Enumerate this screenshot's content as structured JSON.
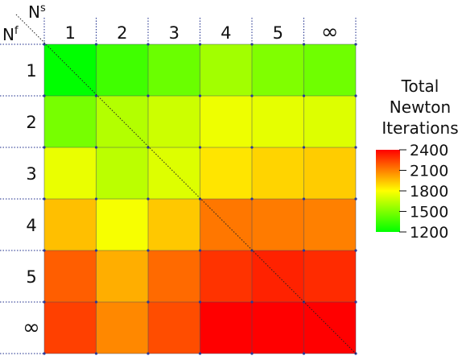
{
  "chart_data": {
    "type": "heatmap",
    "x_axis_label": "N",
    "x_axis_superscript": "s",
    "y_axis_label": "N",
    "y_axis_superscript": "f",
    "x_categories": [
      "1",
      "2",
      "3",
      "4",
      "5",
      "∞"
    ],
    "y_categories": [
      "1",
      "2",
      "3",
      "4",
      "5",
      "∞"
    ],
    "values": [
      [
        1200,
        1350,
        1450,
        1580,
        1500,
        1460
      ],
      [
        1480,
        1620,
        1680,
        1760,
        1740,
        1720
      ],
      [
        1750,
        1640,
        1720,
        1860,
        1900,
        1920
      ],
      [
        1950,
        1780,
        1930,
        2120,
        2110,
        2100
      ],
      [
        2180,
        1990,
        2150,
        2280,
        2320,
        2300
      ],
      [
        2250,
        2080,
        2220,
        2420,
        2400,
        2410
      ]
    ],
    "colorbar": {
      "title_lines": [
        "Total",
        "Newton",
        "Iterations"
      ],
      "ticks": [
        2400,
        2100,
        1800,
        1500,
        1200
      ],
      "range": [
        1200,
        2400
      ],
      "colors": [
        "#00ff00",
        "#ffff00",
        "#ff0000"
      ]
    },
    "diagonal_line": true
  }
}
